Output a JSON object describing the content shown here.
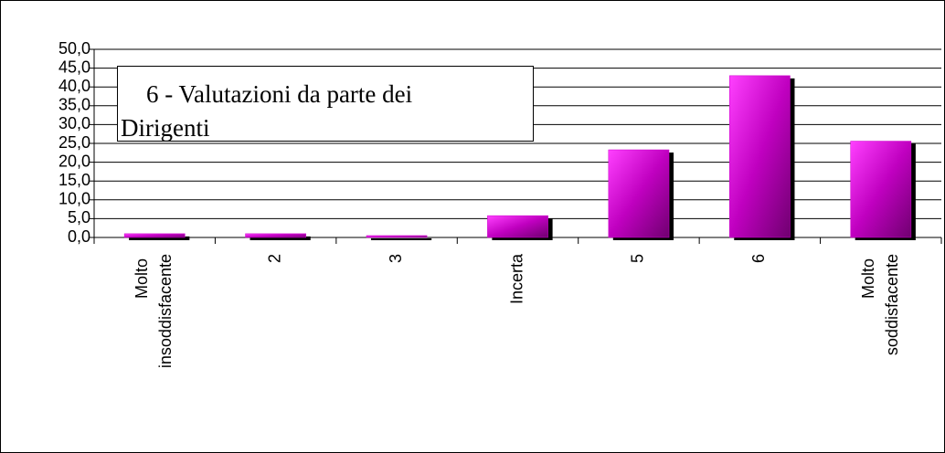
{
  "chart_data": {
    "type": "bar",
    "title": "6 - Valutazioni da parte dei Dirigenti",
    "categories": [
      "Molto insoddisfacente",
      "2",
      "3",
      "Incerta",
      "5",
      "6",
      "Molto soddisfacente"
    ],
    "values": [
      1.0,
      1.0,
      0.5,
      5.8,
      23.3,
      43.0,
      25.6
    ],
    "color": "#cc00cc",
    "ylim": [
      0,
      50
    ],
    "yticks": [
      {
        "value": 0,
        "label": "0,0"
      },
      {
        "value": 5,
        "label": "5,0"
      },
      {
        "value": 10,
        "label": "10,0"
      },
      {
        "value": 15,
        "label": "15,0"
      },
      {
        "value": 20,
        "label": "20,0"
      },
      {
        "value": 25,
        "label": "25,0"
      },
      {
        "value": 30,
        "label": "30,0"
      },
      {
        "value": 35,
        "label": "35,0"
      },
      {
        "value": 40,
        "label": "40,0"
      },
      {
        "value": 45,
        "label": "45,0"
      },
      {
        "value": 50,
        "label": "50,0"
      }
    ],
    "grid": true
  }
}
